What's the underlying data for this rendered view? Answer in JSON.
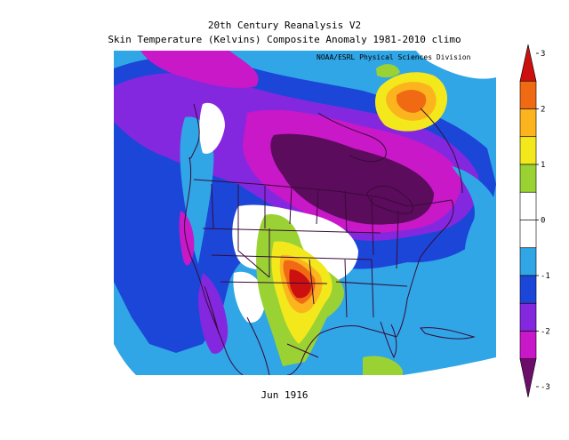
{
  "title_line1": "20th Century Reanalysis V2",
  "title_line2": "Skin Temperature (Kelvins) Composite Anomaly 1981-2010 climo",
  "credit": "NOAA/ESRL Physical Sciences Division",
  "period": "Jun 1916",
  "colorbar": {
    "ticks": [
      "3",
      "2",
      "1",
      "0",
      "-1",
      "-2",
      "-3"
    ],
    "bands": [
      {
        "min": 2.5,
        "max": 3.0,
        "color": "#cc1010"
      },
      {
        "min": 2.0,
        "max": 2.5,
        "color": "#f06a14"
      },
      {
        "min": 1.5,
        "max": 2.0,
        "color": "#fcb41e"
      },
      {
        "min": 1.0,
        "max": 1.5,
        "color": "#f2e81c"
      },
      {
        "min": 0.5,
        "max": 1.0,
        "color": "#9ad234"
      },
      {
        "min": 0.0,
        "max": 0.5,
        "color": "#ffffff"
      },
      {
        "min": -0.5,
        "max": 0.0,
        "color": "#ffffff"
      },
      {
        "min": -1.0,
        "max": -0.5,
        "color": "#30a6e6"
      },
      {
        "min": -1.5,
        "max": -1.0,
        "color": "#1c46d8"
      },
      {
        "min": -2.0,
        "max": -1.5,
        "color": "#8428e0"
      },
      {
        "min": -2.5,
        "max": -2.0,
        "color": "#c818c8"
      },
      {
        "min": -3.0,
        "max": -2.5,
        "color": "#6a0e6a"
      }
    ]
  },
  "map_colors": {
    "deep_purple": "#5c0c5c",
    "magenta": "#c818c8",
    "violet": "#8428e0",
    "blue": "#1c46d8",
    "light_blue": "#30a6e6",
    "white": "#ffffff",
    "green": "#9ad234",
    "yellow": "#f2e81c",
    "orange": "#fcb41e",
    "dark_orange": "#f06a14",
    "red": "#cc1010",
    "boundary": "#3a0a3a"
  }
}
